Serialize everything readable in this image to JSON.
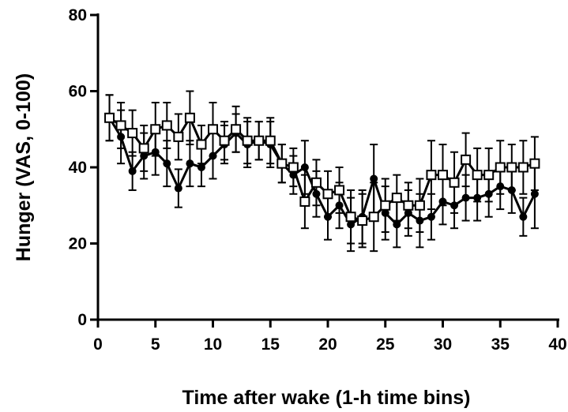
{
  "chart_data": {
    "type": "line",
    "xlabel": "Time after wake (1-h time bins)",
    "ylabel": "Hunger (VAS, 0-100)",
    "xlim": [
      0,
      40
    ],
    "ylim": [
      0,
      80
    ],
    "xticks": [
      0,
      5,
      10,
      15,
      20,
      25,
      30,
      35,
      40
    ],
    "yticks": [
      0,
      20,
      40,
      60,
      80
    ],
    "grid": false,
    "legend": "none",
    "x": [
      1,
      2,
      3,
      4,
      5,
      6,
      7,
      8,
      9,
      10,
      11,
      12,
      13,
      14,
      15,
      16,
      17,
      18,
      19,
      20,
      21,
      22,
      23,
      24,
      25,
      26,
      27,
      28,
      29,
      30,
      31,
      32,
      33,
      34,
      35,
      36,
      37,
      38
    ],
    "series": [
      {
        "marker": "filled-circle",
        "color": "#000000",
        "values": [
          53,
          48,
          39,
          43,
          44,
          41,
          34.5,
          41,
          40,
          43,
          46,
          49,
          46,
          47,
          46,
          41,
          38,
          40,
          33,
          27,
          30,
          25,
          27,
          37,
          28,
          25,
          28,
          26,
          27,
          31,
          30,
          32,
          32,
          33,
          35,
          34,
          27,
          33
        ],
        "errors": [
          6,
          7,
          5,
          6,
          6,
          6,
          5,
          6,
          5,
          6,
          5,
          5,
          6,
          5,
          6,
          5,
          5,
          7,
          6,
          6,
          6,
          7,
          7,
          9,
          7,
          6,
          6,
          7,
          6,
          6,
          6,
          6,
          6,
          6,
          6,
          6,
          5,
          9
        ]
      },
      {
        "marker": "open-square",
        "color": "#000000",
        "values": [
          53,
          51,
          49,
          45,
          50,
          51,
          48,
          53,
          46,
          50,
          47,
          50,
          47,
          47,
          47,
          41,
          40,
          31,
          36,
          33,
          34,
          27,
          26,
          27,
          30,
          32,
          30,
          30,
          38,
          38,
          36,
          42,
          38,
          38,
          40,
          40,
          40,
          41
        ],
        "errors": [
          6,
          6,
          6,
          6,
          7,
          6,
          6,
          7,
          5,
          7,
          5,
          6,
          6,
          5,
          6,
          5,
          5,
          7,
          6,
          6,
          6,
          7,
          7,
          9,
          7,
          6,
          6,
          7,
          9,
          8,
          8,
          7,
          7,
          7,
          7,
          6,
          7,
          7
        ]
      }
    ]
  }
}
